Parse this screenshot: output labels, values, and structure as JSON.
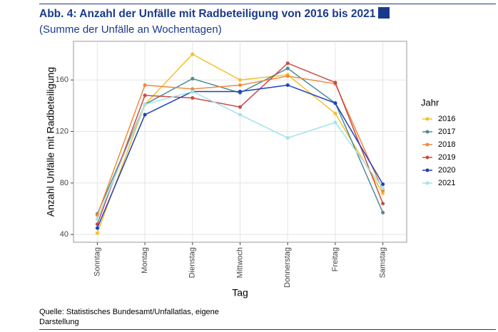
{
  "header": {
    "title": "Abb. 4: Anzahl der Unfälle mit Radbeteiligung von 2016 bis 2021",
    "subtitle": "(Summe der Unfälle an Wochentagen)"
  },
  "chart_data": {
    "type": "line",
    "x_label": "Tag",
    "y_label": "Anzahl Unfälle mit Radbeteiligung",
    "legend_title": "Jahr",
    "categories": [
      "Sonntag",
      "Montag",
      "Dienstag",
      "Mittwoch",
      "Donnerstag",
      "Freitag",
      "Samstag"
    ],
    "series": [
      {
        "name": "2016",
        "color": "#f5c02c",
        "values": [
          41,
          141,
          180,
          160,
          164,
          134,
          72
        ]
      },
      {
        "name": "2017",
        "color": "#4d8d94",
        "values": [
          56,
          141,
          161,
          150,
          169,
          142,
          57
        ]
      },
      {
        "name": "2018",
        "color": "#f08a3c",
        "values": [
          55,
          156,
          153,
          156,
          163,
          157,
          74
        ]
      },
      {
        "name": "2019",
        "color": "#c94a44",
        "values": [
          48,
          148,
          146,
          139,
          173,
          158,
          64
        ]
      },
      {
        "name": "2020",
        "color": "#1f3fbf",
        "values": [
          45,
          133,
          151,
          151,
          156,
          142,
          79
        ]
      },
      {
        "name": "2021",
        "color": "#a0e4ec",
        "values": [
          52,
          141,
          151,
          133,
          115,
          127,
          76
        ]
      }
    ],
    "ylim": [
      34,
      190
    ],
    "yticks": [
      40,
      80,
      120,
      160
    ],
    "grid": true,
    "legend_position": "right"
  },
  "source": "Quelle: Statistisches Bundesamt/Unfallatlas, eigene Darstellung"
}
